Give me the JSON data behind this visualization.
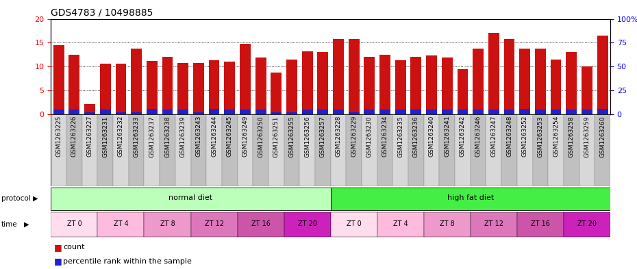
{
  "title": "GDS4783 / 10498885",
  "samples": [
    "GSM1263225",
    "GSM1263226",
    "GSM1263227",
    "GSM1263231",
    "GSM1263232",
    "GSM1263233",
    "GSM1263237",
    "GSM1263238",
    "GSM1263239",
    "GSM1263243",
    "GSM1263244",
    "GSM1263245",
    "GSM1263249",
    "GSM1263250",
    "GSM1263251",
    "GSM1263255",
    "GSM1263256",
    "GSM1263257",
    "GSM1263228",
    "GSM1263229",
    "GSM1263230",
    "GSM1263234",
    "GSM1263235",
    "GSM1263236",
    "GSM1263240",
    "GSM1263241",
    "GSM1263242",
    "GSM1263246",
    "GSM1263247",
    "GSM1263248",
    "GSM1263252",
    "GSM1263253",
    "GSM1263254",
    "GSM1263258",
    "GSM1263259",
    "GSM1263260"
  ],
  "red_values": [
    14.5,
    12.5,
    2.2,
    10.6,
    10.6,
    13.8,
    11.2,
    12.1,
    10.8,
    10.8,
    11.3,
    11.0,
    14.7,
    11.9,
    8.7,
    11.5,
    13.2,
    13.1,
    15.8,
    15.8,
    12.0,
    12.5,
    11.3,
    12.0,
    12.3,
    11.9,
    9.5,
    13.8,
    17.0,
    15.8,
    13.8,
    13.8,
    11.5,
    13.0,
    10.0,
    16.5
  ],
  "blue_values": [
    1.0,
    1.0,
    0.5,
    1.0,
    0.5,
    0.5,
    1.2,
    1.0,
    1.0,
    0.5,
    1.2,
    1.0,
    1.0,
    1.0,
    0.5,
    0.5,
    1.0,
    1.0,
    1.0,
    0.5,
    1.0,
    1.0,
    1.0,
    1.0,
    1.0,
    1.0,
    1.0,
    1.0,
    1.0,
    1.0,
    1.2,
    1.0,
    1.0,
    1.0,
    1.0,
    1.2
  ],
  "protocol_groups": [
    {
      "label": "normal diet",
      "start": 0,
      "end": 18,
      "color": "#bbffbb"
    },
    {
      "label": "high fat diet",
      "start": 18,
      "end": 36,
      "color": "#44ee44"
    }
  ],
  "time_groups": [
    {
      "label": "ZT 0",
      "start": 0,
      "end": 3,
      "color": "#ffddee"
    },
    {
      "label": "ZT 4",
      "start": 3,
      "end": 6,
      "color": "#ffbbdd"
    },
    {
      "label": "ZT 8",
      "start": 6,
      "end": 9,
      "color": "#ee99cc"
    },
    {
      "label": "ZT 12",
      "start": 9,
      "end": 12,
      "color": "#dd77bb"
    },
    {
      "label": "ZT 16",
      "start": 12,
      "end": 15,
      "color": "#cc55aa"
    },
    {
      "label": "ZT 20",
      "start": 15,
      "end": 18,
      "color": "#cc22bb"
    },
    {
      "label": "ZT 0",
      "start": 18,
      "end": 21,
      "color": "#ffddee"
    },
    {
      "label": "ZT 4",
      "start": 21,
      "end": 24,
      "color": "#ffbbdd"
    },
    {
      "label": "ZT 8",
      "start": 24,
      "end": 27,
      "color": "#ee99cc"
    },
    {
      "label": "ZT 12",
      "start": 27,
      "end": 30,
      "color": "#dd77bb"
    },
    {
      "label": "ZT 16",
      "start": 30,
      "end": 33,
      "color": "#cc55aa"
    },
    {
      "label": "ZT 20",
      "start": 33,
      "end": 36,
      "color": "#cc22bb"
    }
  ],
  "ylim_left": [
    0,
    20
  ],
  "ylim_right": [
    0,
    100
  ],
  "yticks_left": [
    0,
    5,
    10,
    15,
    20
  ],
  "yticks_right": [
    0,
    25,
    50,
    75,
    100
  ],
  "bar_color_red": "#cc1111",
  "bar_color_blue": "#2222cc",
  "bar_width": 0.7,
  "bg_color": "#ffffff",
  "title_fontsize": 10,
  "sample_fontsize": 6.5,
  "row_label_fontsize": 8,
  "tick_fontsize": 8,
  "legend_fontsize": 8
}
